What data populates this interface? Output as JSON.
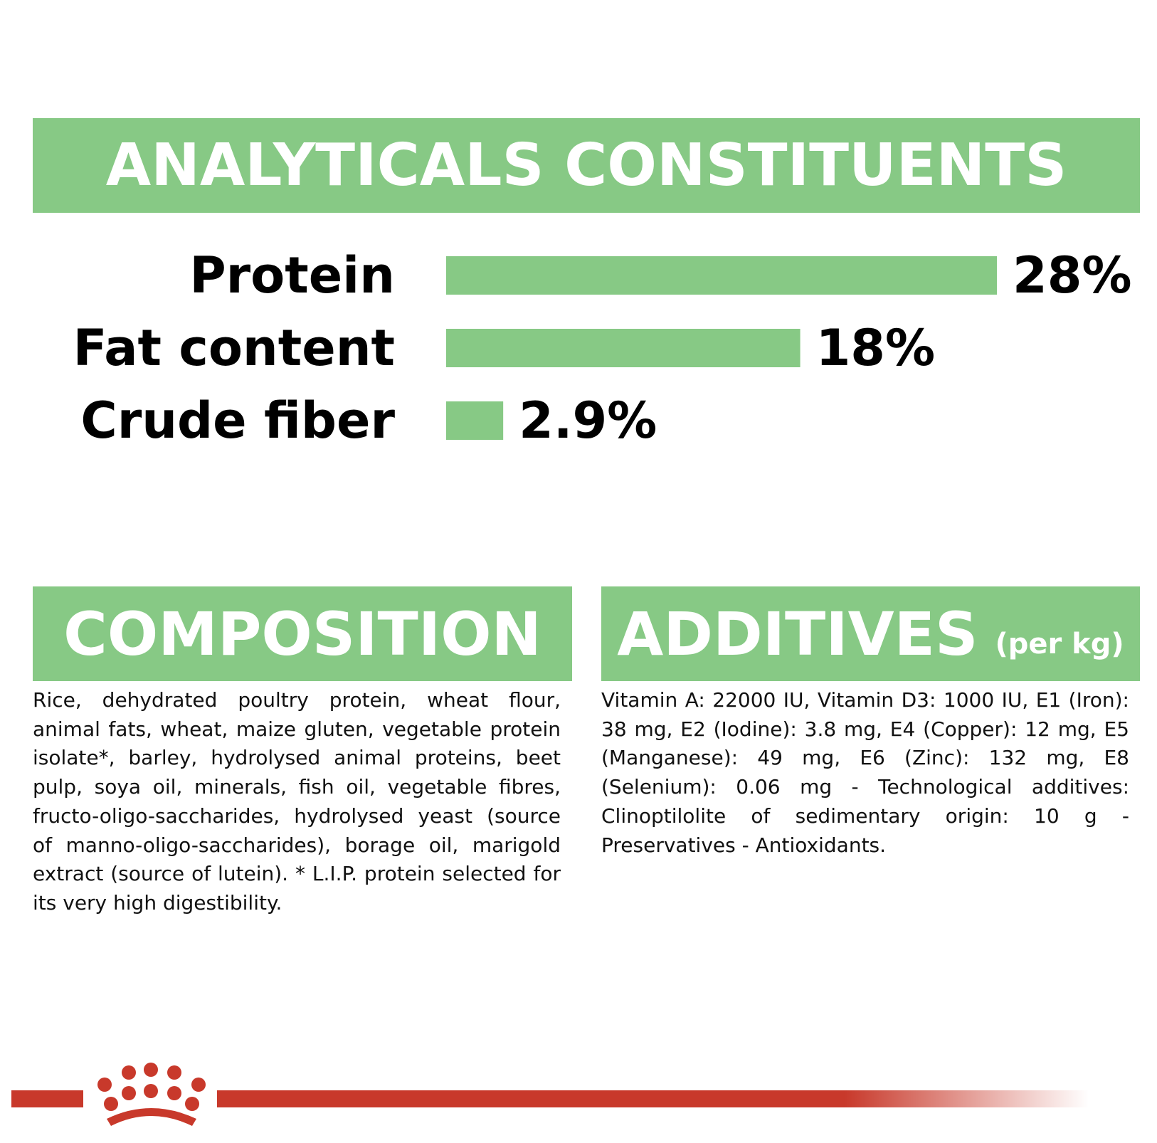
{
  "sections": {
    "analytics_title": "ANALYTICALS CONSTITUENTS",
    "composition_title": "COMPOSITION",
    "additives_title": "ADDITIVES",
    "additives_subtitle": "(per kg)"
  },
  "composition_text": "Rice, dehydrated poultry protein, wheat flour, animal fats, wheat, maize gluten, vegetable protein isolate*, barley, hydrolysed animal proteins, beet pulp, soya oil, minerals, fish oil, vegetable fibres, fructo-oligo-saccharides, hydrolysed yeast (source of manno-oligo-saccharides), borage oil, marigold extract (source of lutein). * L.I.P. protein selected for its very high digestibility.",
  "additives_text": "Vitamin A: 22000 IU, Vitamin D3: 1000 IU, E1 (Iron): 38 mg, E2 (Iodine): 3.8 mg, E4 (Copper): 12 mg, E5 (Manganese): 49 mg, E6 (Zinc): 132 mg, E8 (Selenium): 0.06 mg - Technological additives: Clinoptilolite of sedimentary origin: 10 g - Preservatives - Antioxidants.",
  "colors": {
    "banner_green": "#87c985",
    "bar_green": "#87c985",
    "brand_red": "#c8392b"
  },
  "logo": {
    "icon": "crown-icon"
  },
  "chart_data": {
    "type": "bar",
    "orientation": "horizontal",
    "title": "ANALYTICALS CONSTITUENTS",
    "categories": [
      "Protein",
      "Fat content",
      "Crude fiber"
    ],
    "values": [
      28,
      18,
      2.9
    ],
    "value_labels": [
      "28%",
      "18%",
      "2.9%"
    ],
    "unit": "%",
    "xlim": [
      0,
      28
    ],
    "grid": false,
    "legend": "none"
  }
}
